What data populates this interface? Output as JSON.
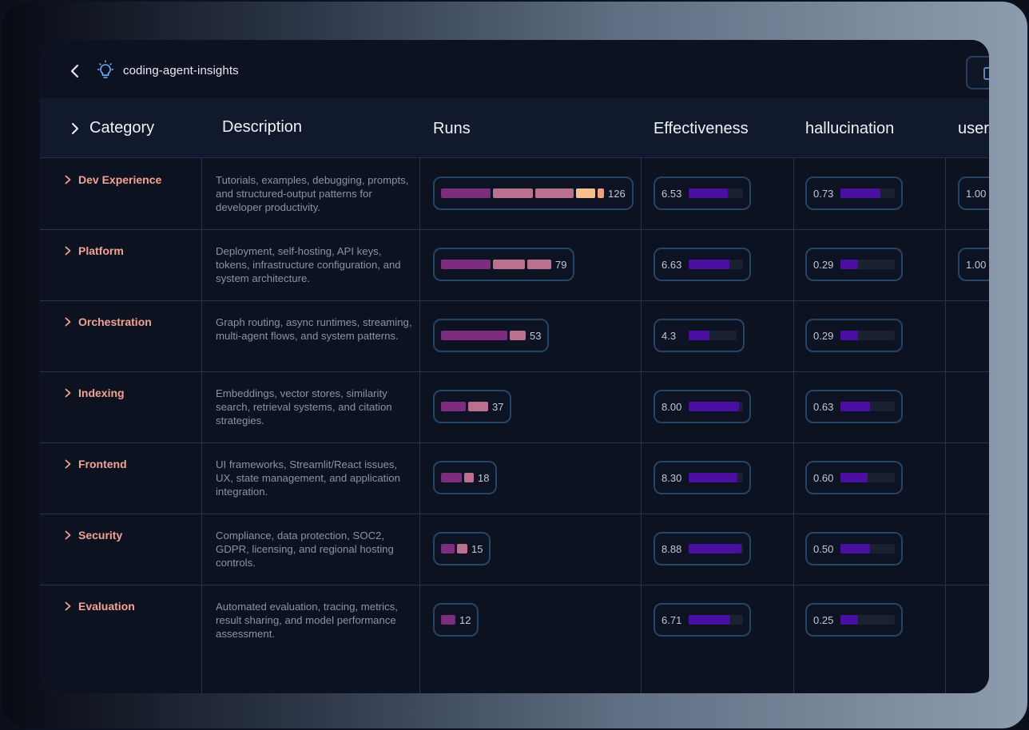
{
  "app": {
    "title": "coding-agent-insights"
  },
  "headers": {
    "category": "Category",
    "description": "Description",
    "runs": "Runs",
    "effectiveness": "Effectiveness",
    "hallucination": "hallucination",
    "user": "user"
  },
  "colors": {
    "runs_segments": [
      "#7c2d7e",
      "#b9718f",
      "#b9718f",
      "#f6c08e",
      "#f2a07b"
    ],
    "metric_fill": "#4a0fa0",
    "category_text": "#f2a394"
  },
  "rows": [
    {
      "category": "Dev Experience",
      "description": "Tutorials, examples, debugging, prompts, and structured-output patterns for developer productivity.",
      "runs": "126",
      "runs_breakdown": [
        62,
        50,
        48,
        24,
        8
      ],
      "effectiveness": "6.53",
      "effectiveness_fraction": 0.72,
      "hallucination": "0.73",
      "hallucination_fraction": 0.73,
      "user": "1.00"
    },
    {
      "category": "Platform",
      "description": "Deployment, self-hosting, API keys, tokens, infrastructure configuration, and system architecture.",
      "runs": "79",
      "runs_breakdown": [
        62,
        40,
        30
      ],
      "effectiveness": "6.63",
      "effectiveness_fraction": 0.75,
      "hallucination": "0.29",
      "hallucination_fraction": 0.32,
      "user": "1.00"
    },
    {
      "category": "Orchestration",
      "description": "Graph routing, async runtimes, streaming, multi-agent flows, and system patterns.",
      "runs": "53",
      "runs_breakdown": [
        83,
        20
      ],
      "effectiveness": "4.3",
      "effectiveness_fraction": 0.44,
      "hallucination": "0.29",
      "hallucination_fraction": 0.32,
      "user": ""
    },
    {
      "category": "Indexing",
      "description": "Embeddings, vector stores, similarity search, retrieval systems, and citation strategies.",
      "runs": "37",
      "runs_breakdown": [
        31,
        25
      ],
      "effectiveness": "8.00",
      "effectiveness_fraction": 0.92,
      "hallucination": "0.63",
      "hallucination_fraction": 0.55,
      "user": ""
    },
    {
      "category": "Frontend",
      "description": "UI frameworks, Streamlit/React issues, UX, state management, and application integration.",
      "runs": "18",
      "runs_breakdown": [
        26,
        12
      ],
      "effectiveness": "8.30",
      "effectiveness_fraction": 0.9,
      "hallucination": "0.60",
      "hallucination_fraction": 0.5,
      "user": ""
    },
    {
      "category": "Security",
      "description": "Compliance, data protection, SOC2, GDPR, licensing, and regional hosting controls.",
      "runs": "15",
      "runs_breakdown": [
        17,
        13
      ],
      "effectiveness": "8.88",
      "effectiveness_fraction": 0.97,
      "hallucination": "0.50",
      "hallucination_fraction": 0.55,
      "user": ""
    },
    {
      "category": "Evaluation",
      "description": "Automated evaluation, tracing, metrics, result sharing, and model performance assessment.",
      "runs": "12",
      "runs_breakdown": [
        18
      ],
      "effectiveness": "6.71",
      "effectiveness_fraction": 0.77,
      "hallucination": "0.25",
      "hallucination_fraction": 0.32,
      "user": ""
    }
  ]
}
